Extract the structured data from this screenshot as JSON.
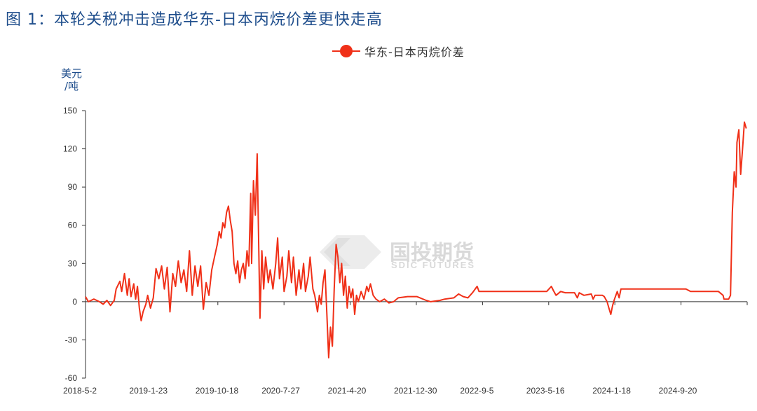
{
  "title": "图 1：本轮关税冲击造成华东-日本丙烷价差更快走高",
  "watermark": {
    "cn": "国投期货",
    "en": "SDIC FUTURES"
  },
  "colors": {
    "series": "#f03018",
    "title": "#1f4e8c",
    "watermark": "#d9d9d9"
  },
  "chart_data": {
    "type": "line",
    "title": "图 1：本轮关税冲击造成华东-日本丙烷价差更快走高",
    "ylabel": "美元/吨",
    "y_unit_line1": "美元",
    "y_unit_line2": "/吨",
    "ylim": [
      -60,
      150
    ],
    "yticks": [
      150,
      120,
      90,
      60,
      30,
      0,
      -30,
      -60
    ],
    "ytick_labels": [
      "150",
      "120",
      "90",
      "60",
      "30",
      "0",
      "-30",
      "-60"
    ],
    "xtick_labels": [
      "2018-5-2",
      "2019-1-23",
      "2019-10-18",
      "2020-7-27",
      "2021-4-20",
      "2021-12-30",
      "2022-9-5",
      "2023-5-16",
      "2024-1-18",
      "2024-9-20"
    ],
    "grid": false,
    "legend_position": "top-center",
    "series": [
      {
        "name": "华东-日本丙烷价差",
        "color": "#f03018",
        "values": [
          [
            2018.33,
            4
          ],
          [
            2018.36,
            0
          ],
          [
            2018.42,
            2
          ],
          [
            2018.48,
            0
          ],
          [
            2018.52,
            -2
          ],
          [
            2018.56,
            1
          ],
          [
            2018.6,
            -3
          ],
          [
            2018.64,
            1
          ],
          [
            2018.66,
            10
          ],
          [
            2018.7,
            16
          ],
          [
            2018.72,
            8
          ],
          [
            2018.75,
            22
          ],
          [
            2018.78,
            5
          ],
          [
            2018.8,
            18
          ],
          [
            2018.82,
            4
          ],
          [
            2018.85,
            14
          ],
          [
            2018.87,
            2
          ],
          [
            2018.89,
            12
          ],
          [
            2018.91,
            -5
          ],
          [
            2018.93,
            -15
          ],
          [
            2018.95,
            -8
          ],
          [
            2018.98,
            -2
          ],
          [
            2019.0,
            5
          ],
          [
            2019.03,
            -5
          ],
          [
            2019.06,
            3
          ],
          [
            2019.09,
            26
          ],
          [
            2019.12,
            18
          ],
          [
            2019.15,
            28
          ],
          [
            2019.18,
            10
          ],
          [
            2019.21,
            27
          ],
          [
            2019.24,
            -8
          ],
          [
            2019.27,
            22
          ],
          [
            2019.3,
            12
          ],
          [
            2019.33,
            32
          ],
          [
            2019.36,
            15
          ],
          [
            2019.39,
            25
          ],
          [
            2019.42,
            8
          ],
          [
            2019.45,
            40
          ],
          [
            2019.48,
            5
          ],
          [
            2019.51,
            28
          ],
          [
            2019.54,
            12
          ],
          [
            2019.57,
            28
          ],
          [
            2019.6,
            -6
          ],
          [
            2019.63,
            15
          ],
          [
            2019.66,
            5
          ],
          [
            2019.69,
            25
          ],
          [
            2019.72,
            35
          ],
          [
            2019.75,
            45
          ],
          [
            2019.77,
            55
          ],
          [
            2019.79,
            50
          ],
          [
            2019.81,
            62
          ],
          [
            2019.83,
            58
          ],
          [
            2019.85,
            70
          ],
          [
            2019.87,
            75
          ],
          [
            2019.89,
            64
          ],
          [
            2019.91,
            55
          ],
          [
            2019.93,
            30
          ],
          [
            2019.95,
            22
          ],
          [
            2019.97,
            32
          ],
          [
            2019.99,
            15
          ],
          [
            2020.01,
            25
          ],
          [
            2020.03,
            30
          ],
          [
            2020.05,
            18
          ],
          [
            2020.07,
            40
          ],
          [
            2020.09,
            28
          ],
          [
            2020.11,
            85
          ],
          [
            2020.12,
            30
          ],
          [
            2020.14,
            95
          ],
          [
            2020.16,
            68
          ],
          [
            2020.18,
            116
          ],
          [
            2020.19,
            70
          ],
          [
            2020.21,
            -13
          ],
          [
            2020.23,
            40
          ],
          [
            2020.25,
            10
          ],
          [
            2020.27,
            35
          ],
          [
            2020.3,
            15
          ],
          [
            2020.32,
            25
          ],
          [
            2020.35,
            10
          ],
          [
            2020.38,
            30
          ],
          [
            2020.4,
            50
          ],
          [
            2020.42,
            18
          ],
          [
            2020.45,
            35
          ],
          [
            2020.47,
            8
          ],
          [
            2020.5,
            20
          ],
          [
            2020.52,
            40
          ],
          [
            2020.55,
            15
          ],
          [
            2020.57,
            35
          ],
          [
            2020.6,
            5
          ],
          [
            2020.63,
            25
          ],
          [
            2020.65,
            10
          ],
          [
            2020.68,
            30
          ],
          [
            2020.7,
            8
          ],
          [
            2020.73,
            20
          ],
          [
            2020.75,
            35
          ],
          [
            2020.78,
            10
          ],
          [
            2020.8,
            5
          ],
          [
            2020.83,
            -8
          ],
          [
            2020.85,
            5
          ],
          [
            2020.87,
            -2
          ],
          [
            2020.89,
            15
          ],
          [
            2020.91,
            25
          ],
          [
            2020.93,
            -8
          ],
          [
            2020.95,
            -44
          ],
          [
            2020.97,
            -20
          ],
          [
            2020.99,
            -35
          ],
          [
            2021.01,
            10
          ],
          [
            2021.03,
            45
          ],
          [
            2021.05,
            35
          ],
          [
            2021.07,
            15
          ],
          [
            2021.09,
            30
          ],
          [
            2021.11,
            5
          ],
          [
            2021.13,
            20
          ],
          [
            2021.15,
            -5
          ],
          [
            2021.17,
            12
          ],
          [
            2021.19,
            3
          ],
          [
            2021.21,
            10
          ],
          [
            2021.23,
            -10
          ],
          [
            2021.25,
            5
          ],
          [
            2021.27,
            0
          ],
          [
            2021.3,
            8
          ],
          [
            2021.33,
            2
          ],
          [
            2021.36,
            12
          ],
          [
            2021.38,
            8
          ],
          [
            2021.4,
            14
          ],
          [
            2021.43,
            5
          ],
          [
            2021.46,
            2
          ],
          [
            2021.5,
            0
          ],
          [
            2021.55,
            2
          ],
          [
            2021.6,
            -1
          ],
          [
            2021.65,
            0
          ],
          [
            2021.7,
            3
          ],
          [
            2021.8,
            4
          ],
          [
            2021.9,
            4
          ],
          [
            2022.0,
            1
          ],
          [
            2022.05,
            0
          ],
          [
            2022.15,
            1
          ],
          [
            2022.2,
            2
          ],
          [
            2022.3,
            3
          ],
          [
            2022.35,
            6
          ],
          [
            2022.4,
            4
          ],
          [
            2022.45,
            3
          ],
          [
            2022.5,
            7
          ],
          [
            2022.55,
            12
          ],
          [
            2022.57,
            8
          ],
          [
            2022.7,
            8
          ],
          [
            2022.9,
            8
          ],
          [
            2023.1,
            8
          ],
          [
            2023.3,
            8
          ],
          [
            2023.35,
            12
          ],
          [
            2023.37,
            9
          ],
          [
            2023.4,
            5
          ],
          [
            2023.45,
            8
          ],
          [
            2023.5,
            7
          ],
          [
            2023.6,
            7
          ],
          [
            2023.63,
            3
          ],
          [
            2023.65,
            7
          ],
          [
            2023.7,
            5
          ],
          [
            2023.78,
            6
          ],
          [
            2023.8,
            2
          ],
          [
            2023.82,
            5
          ],
          [
            2023.9,
            5
          ],
          [
            2023.92,
            4
          ],
          [
            2023.95,
            0
          ],
          [
            2023.97,
            -5
          ],
          [
            2023.99,
            -10
          ],
          [
            2024.01,
            -3
          ],
          [
            2024.03,
            2
          ],
          [
            2024.06,
            8
          ],
          [
            2024.08,
            3
          ],
          [
            2024.1,
            10
          ],
          [
            2024.14,
            10
          ],
          [
            2024.3,
            10
          ],
          [
            2024.5,
            10
          ],
          [
            2024.7,
            10
          ],
          [
            2024.8,
            10
          ],
          [
            2024.85,
            8
          ],
          [
            2024.95,
            8
          ],
          [
            2025.05,
            8
          ],
          [
            2025.15,
            8
          ],
          [
            2025.2,
            5
          ],
          [
            2025.21,
            2
          ],
          [
            2025.26,
            2
          ],
          [
            2025.28,
            5
          ],
          [
            2025.3,
            70
          ],
          [
            2025.32,
            102
          ],
          [
            2025.34,
            90
          ],
          [
            2025.35,
            125
          ],
          [
            2025.37,
            135
          ],
          [
            2025.39,
            100
          ],
          [
            2025.41,
            120
          ],
          [
            2025.43,
            141
          ],
          [
            2025.45,
            136
          ]
        ]
      }
    ]
  }
}
